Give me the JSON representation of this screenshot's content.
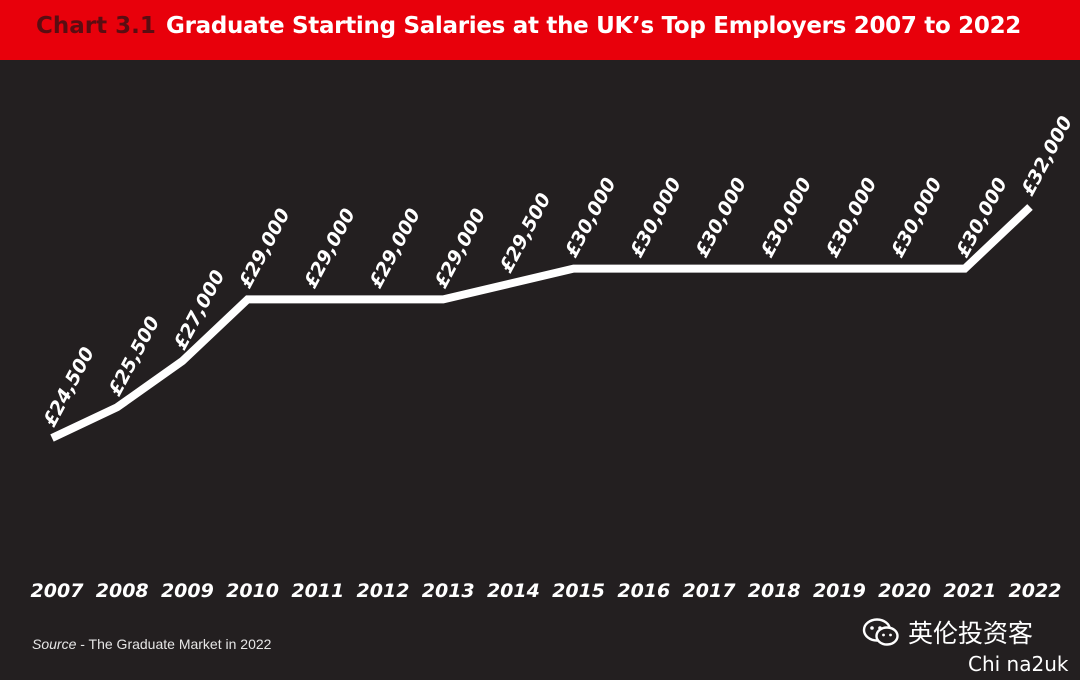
{
  "header": {
    "chart_number": "Chart 3.1",
    "title": "Graduate Starting Salaries at the UK’s Top Employers 2007 to 2022",
    "background_color": "#e8000b"
  },
  "chart_data": {
    "type": "line",
    "title": "Graduate Starting Salaries at the UK’s Top Employers 2007 to 2022",
    "x": [
      "2007",
      "2008",
      "2009",
      "2010",
      "2011",
      "2012",
      "2013",
      "2014",
      "2015",
      "2016",
      "2017",
      "2018",
      "2019",
      "2020",
      "2021",
      "2022"
    ],
    "series": [
      {
        "values": [
          24500,
          25500,
          27000,
          29000,
          29000,
          29000,
          29000,
          29500,
          30000,
          30000,
          30000,
          30000,
          30000,
          30000,
          30000,
          32000
        ],
        "labels": [
          "£24,500",
          "£25,500",
          "£27,000",
          "£29,000",
          "£29,000",
          "£29,000",
          "£29,000",
          "£29,500",
          "£30,000",
          "£30,000",
          "£30,000",
          "£30,000",
          "£30,000",
          "£30,000",
          "£30,000",
          "£32,000"
        ],
        "color": "#ffffff"
      }
    ],
    "xlabel": "",
    "ylabel": "",
    "ylim": [
      24500,
      32000
    ],
    "grid": false,
    "legend": "none",
    "background_color": "#231f20"
  },
  "source": {
    "prefix": "Source",
    "text": " - The Graduate Market in 2022"
  },
  "watermark": {
    "icon": "wechat-icon",
    "text": "英伦投资客",
    "subtext": "Chi na2uk"
  }
}
